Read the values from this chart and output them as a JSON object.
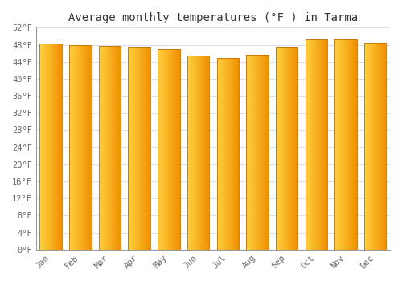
{
  "title": "Average monthly temperatures (°F ) in Tarma",
  "months": [
    "Jan",
    "Feb",
    "Mar",
    "Apr",
    "May",
    "Jun",
    "Jul",
    "Aug",
    "Sep",
    "Oct",
    "Nov",
    "Dec"
  ],
  "values": [
    48.2,
    48.0,
    47.8,
    47.5,
    47.0,
    45.5,
    44.8,
    45.7,
    47.5,
    49.3,
    49.3,
    48.5
  ],
  "ylim": [
    0,
    52
  ],
  "yticks": [
    0,
    4,
    8,
    12,
    16,
    20,
    24,
    28,
    32,
    36,
    40,
    44,
    48,
    52
  ],
  "ytick_labels": [
    "0°F",
    "4°F",
    "8°F",
    "12°F",
    "16°F",
    "20°F",
    "24°F",
    "28°F",
    "32°F",
    "36°F",
    "40°F",
    "44°F",
    "48°F",
    "52°F"
  ],
  "background_color": "#FFFFFF",
  "grid_color": "#DDDDEE",
  "title_fontsize": 10,
  "tick_fontsize": 7.5,
  "bar_color_left": "#FFD040",
  "bar_color_right": "#F09000",
  "bar_edge_color": "#C07000",
  "bar_width": 0.75,
  "gradient_steps": 50
}
